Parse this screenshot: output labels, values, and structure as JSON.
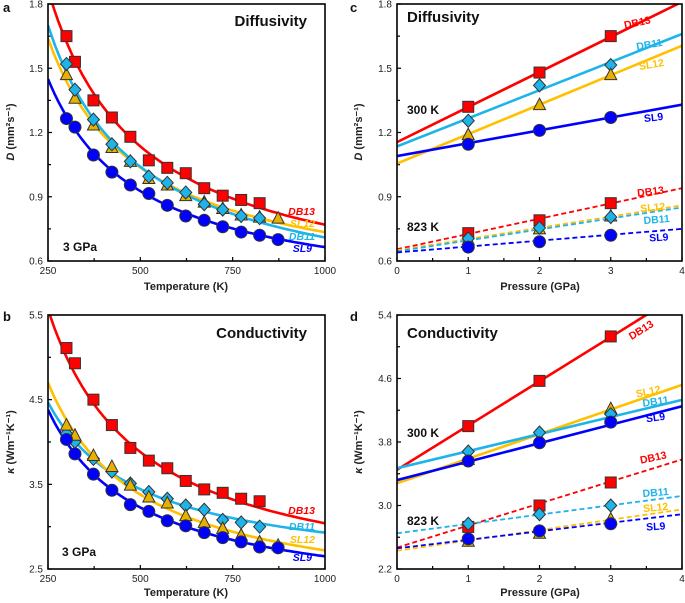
{
  "colors": {
    "DB13": "#ff0000",
    "DB11": "#1eb4ea",
    "SL12": "#ffc000",
    "SL9": "#0000ff",
    "marker_edge": "#333333"
  },
  "chart_data": [
    {
      "panel": "a",
      "type": "scatter",
      "title": "Diffusivity",
      "xlabel": "Temperature (K)",
      "ylabel_symbol": "D",
      "ylabel_unit": " (mm²s⁻¹)",
      "xlim": [
        250,
        1000
      ],
      "ylim": [
        0.6,
        1.8
      ],
      "xticks": [
        250,
        500,
        750,
        1000
      ],
      "yticks": [
        0.6,
        0.9,
        1.2,
        1.5,
        1.8
      ],
      "xtick_labels": [
        "250",
        "500",
        "750",
        "1000"
      ],
      "ytick_labels": [
        "0.6",
        "0.9",
        "1.2",
        "1.5",
        "1.8"
      ],
      "annotations": [
        "3 GPa"
      ],
      "grid": false,
      "series": [
        {
          "name": "DB13",
          "marker": "square",
          "fit": {
            "form": "a+b/T",
            "a": 0.404,
            "b": 365.6
          },
          "x": [
            300,
            323,
            373,
            423,
            473,
            523,
            573,
            623,
            673,
            723,
            773,
            823
          ],
          "y": [
            1.65,
            1.53,
            1.35,
            1.27,
            1.18,
            1.07,
            1.035,
            1.01,
            0.94,
            0.905,
            0.885,
            0.87
          ]
        },
        {
          "name": "SL12",
          "marker": "triangle",
          "fit": {
            "form": "a+b/T",
            "a": 0.433,
            "b": 301.7
          },
          "x": [
            300,
            323,
            373,
            423,
            473,
            523,
            573,
            623,
            673,
            723,
            773,
            823,
            873
          ],
          "y": [
            1.47,
            1.36,
            1.235,
            1.13,
            1.065,
            0.985,
            0.955,
            0.905,
            0.875,
            0.845,
            0.815,
            0.805,
            0.8
          ]
        },
        {
          "name": "DB11",
          "marker": "diamond",
          "fit": {
            "form": "a+b/T",
            "a": 0.38,
            "b": 330
          },
          "x": [
            300,
            323,
            373,
            423,
            473,
            523,
            573,
            623,
            673,
            723,
            773,
            823
          ],
          "y": [
            1.52,
            1.4,
            1.26,
            1.145,
            1.065,
            0.995,
            0.965,
            0.92,
            0.865,
            0.84,
            0.81,
            0.8
          ]
        },
        {
          "name": "SL9",
          "marker": "circle",
          "fit": {
            "form": "a+b/T",
            "a": 0.403,
            "b": 261.7
          },
          "x": [
            300,
            323,
            373,
            423,
            473,
            523,
            573,
            623,
            673,
            723,
            773,
            823,
            873
          ],
          "y": [
            1.265,
            1.225,
            1.095,
            1.015,
            0.955,
            0.915,
            0.86,
            0.81,
            0.79,
            0.76,
            0.735,
            0.72,
            0.7
          ]
        }
      ]
    },
    {
      "panel": "b",
      "type": "scatter",
      "title": "Conductivity",
      "xlabel": "Temperature (K)",
      "ylabel_symbol": "κ",
      "ylabel_unit": " (Wm⁻¹K⁻¹)",
      "xlim": [
        250,
        1000
      ],
      "ylim": [
        2.5,
        5.5
      ],
      "xticks": [
        250,
        500,
        750,
        1000
      ],
      "yticks": [
        2.5,
        3.5,
        4.5,
        5.5
      ],
      "xtick_labels": [
        "250",
        "500",
        "750",
        "1000"
      ],
      "ytick_labels": [
        "2.5",
        "3.5",
        "4.5",
        "5.5"
      ],
      "annotations": [
        "3 GPa"
      ],
      "grid": false,
      "series": [
        {
          "name": "DB13",
          "marker": "square",
          "fit": {
            "form": "a+b/T",
            "a": 2.198,
            "b": 842
          },
          "x": [
            300,
            323,
            373,
            423,
            473,
            523,
            573,
            623,
            673,
            723,
            773,
            823
          ],
          "y": [
            5.11,
            4.93,
            4.5,
            4.2,
            3.93,
            3.78,
            3.69,
            3.54,
            3.44,
            3.4,
            3.33,
            3.3
          ]
        },
        {
          "name": "DB11",
          "marker": "diamond",
          "fit": {
            "form": "a+b/T",
            "a": 2.417,
            "b": 513
          },
          "x": [
            300,
            323,
            373,
            423,
            473,
            523,
            573,
            623,
            673,
            723,
            773,
            823
          ],
          "y": [
            4.1,
            4.0,
            3.8,
            3.65,
            3.51,
            3.41,
            3.33,
            3.25,
            3.2,
            3.08,
            3.05,
            3.0
          ]
        },
        {
          "name": "SL12",
          "marker": "triangle",
          "fit": {
            "form": "a+b/T",
            "a": 2.06,
            "b": 660
          },
          "x": [
            300,
            323,
            373,
            423,
            473,
            523,
            573,
            623,
            673,
            723,
            773,
            823,
            873
          ],
          "y": [
            4.2,
            4.08,
            3.84,
            3.71,
            3.49,
            3.35,
            3.28,
            3.13,
            3.05,
            2.98,
            2.9,
            2.82,
            2.78
          ]
        },
        {
          "name": "SL9",
          "marker": "circle",
          "fit": {
            "form": "a+b/T",
            "a": 2.073,
            "b": 577
          },
          "x": [
            300,
            323,
            373,
            423,
            473,
            523,
            573,
            623,
            673,
            723,
            773,
            823,
            873
          ],
          "y": [
            4.03,
            3.86,
            3.62,
            3.43,
            3.26,
            3.18,
            3.07,
            3.01,
            2.93,
            2.87,
            2.82,
            2.76,
            2.75
          ]
        }
      ]
    },
    {
      "panel": "c",
      "type": "scatter",
      "title": "Diffusivity",
      "xlabel": "Pressure (GPa)",
      "ylabel_symbol": "D",
      "ylabel_unit": " (mm²s⁻¹)",
      "xlim": [
        0,
        4
      ],
      "ylim": [
        0.6,
        1.8
      ],
      "xticks": [
        0,
        1,
        2,
        3,
        4
      ],
      "yticks": [
        0.6,
        0.9,
        1.2,
        1.5,
        1.8
      ],
      "xtick_labels": [
        "0",
        "1",
        "2",
        "3",
        "4"
      ],
      "ytick_labels": [
        "0.6",
        "0.9",
        "1.2",
        "1.5",
        "1.8"
      ],
      "annotations": [
        "300 K",
        "823 K"
      ],
      "grid": false,
      "series": [
        {
          "name": "DB13",
          "condition": "300 K",
          "marker": "square",
          "line": "solid",
          "fit": {
            "form": "linear",
            "y_at_0": 1.155,
            "y_at_4": 1.81
          },
          "x": [
            1,
            2,
            3
          ],
          "y": [
            1.32,
            1.48,
            1.65
          ]
        },
        {
          "name": "DB11",
          "condition": "300 K",
          "marker": "diamond",
          "line": "solid",
          "fit": {
            "form": "linear",
            "y_at_0": 1.135,
            "y_at_4": 1.66
          },
          "x": [
            1,
            2,
            3
          ],
          "y": [
            1.255,
            1.42,
            1.515
          ]
        },
        {
          "name": "SL12",
          "condition": "300 K",
          "marker": "triangle",
          "line": "solid",
          "fit": {
            "form": "linear",
            "y_at_0": 1.055,
            "y_at_4": 1.605
          },
          "x": [
            1,
            2,
            3
          ],
          "y": [
            1.19,
            1.33,
            1.47
          ]
        },
        {
          "name": "SL9",
          "condition": "300 K",
          "marker": "circle",
          "line": "solid",
          "fit": {
            "form": "linear",
            "y_at_0": 1.09,
            "y_at_4": 1.33
          },
          "x": [
            1,
            2,
            3
          ],
          "y": [
            1.145,
            1.21,
            1.27
          ]
        },
        {
          "name": "DB13",
          "condition": "823 K",
          "marker": "square",
          "line": "dashed",
          "fit": {
            "form": "linear",
            "y_at_0": 0.655,
            "y_at_4": 0.94
          },
          "x": [
            1,
            2,
            3
          ],
          "y": [
            0.73,
            0.79,
            0.87
          ]
        },
        {
          "name": "SL12",
          "condition": "823 K",
          "marker": "triangle",
          "line": "dashed",
          "fit": {
            "form": "linear",
            "y_at_0": 0.65,
            "y_at_4": 0.86
          },
          "x": [
            1,
            2,
            3
          ],
          "y": [
            0.7,
            0.75,
            0.81
          ]
        },
        {
          "name": "DB11",
          "condition": "823 K",
          "marker": "diamond",
          "line": "dashed",
          "fit": {
            "form": "linear",
            "y_at_0": 0.645,
            "y_at_4": 0.85
          },
          "x": [
            1,
            2,
            3
          ],
          "y": [
            0.705,
            0.755,
            0.805
          ]
        },
        {
          "name": "SL9",
          "condition": "823 K",
          "marker": "circle",
          "line": "dashed",
          "fit": {
            "form": "linear",
            "y_at_0": 0.64,
            "y_at_4": 0.75
          },
          "x": [
            1,
            2,
            3
          ],
          "y": [
            0.665,
            0.69,
            0.72
          ]
        }
      ]
    },
    {
      "panel": "d",
      "type": "scatter",
      "title": "Conductivity",
      "xlabel": "Pressure (GPa)",
      "ylabel_symbol": "κ",
      "ylabel_unit": " (Wm⁻¹K⁻¹)",
      "xlim": [
        0,
        4
      ],
      "ylim": [
        2.2,
        5.4
      ],
      "xticks": [
        0,
        1,
        2,
        3,
        4
      ],
      "yticks": [
        2.2,
        3.0,
        3.8,
        4.6,
        5.4
      ],
      "xtick_labels": [
        "0",
        "1",
        "2",
        "3",
        "4"
      ],
      "ytick_labels": [
        "2.2",
        "3.0",
        "3.8",
        "4.6",
        "5.4"
      ],
      "annotations": [
        "300 K",
        "823 K"
      ],
      "grid": false,
      "series": [
        {
          "name": "DB13",
          "condition": "300 K",
          "marker": "square",
          "line": "solid",
          "fit": {
            "form": "linear",
            "y_at_0": 3.45,
            "y_at_4": 5.68
          },
          "x": [
            1,
            2,
            3
          ],
          "y": [
            4.0,
            4.57,
            5.13
          ]
        },
        {
          "name": "SL12",
          "condition": "300 K",
          "marker": "triangle",
          "line": "solid",
          "fit": {
            "form": "linear",
            "y_at_0": 3.28,
            "y_at_4": 4.52
          },
          "x": [
            1,
            2,
            3
          ],
          "y": [
            3.58,
            3.85,
            4.22
          ]
        },
        {
          "name": "DB11",
          "condition": "300 K",
          "marker": "diamond",
          "line": "solid",
          "fit": {
            "form": "linear",
            "y_at_0": 3.47,
            "y_at_4": 4.33
          },
          "x": [
            1,
            2,
            3
          ],
          "y": [
            3.68,
            3.92,
            4.15
          ]
        },
        {
          "name": "SL9",
          "condition": "300 K",
          "marker": "circle",
          "line": "solid",
          "fit": {
            "form": "linear",
            "y_at_0": 3.32,
            "y_at_4": 4.25
          },
          "x": [
            1,
            2,
            3
          ],
          "y": [
            3.56,
            3.79,
            4.05
          ]
        },
        {
          "name": "DB13",
          "condition": "823 K",
          "marker": "square",
          "line": "dashed",
          "fit": {
            "form": "linear",
            "y_at_0": 2.47,
            "y_at_4": 3.58
          },
          "x": [
            1,
            2,
            3
          ],
          "y": [
            2.73,
            3.0,
            3.29
          ]
        },
        {
          "name": "DB11",
          "condition": "823 K",
          "marker": "diamond",
          "line": "dashed",
          "fit": {
            "form": "linear",
            "y_at_0": 2.65,
            "y_at_4": 3.12
          },
          "x": [
            1,
            2,
            3
          ],
          "y": [
            2.77,
            2.89,
            3.0
          ]
        },
        {
          "name": "SL12",
          "condition": "823 K",
          "marker": "triangle",
          "line": "dashed",
          "fit": {
            "form": "linear",
            "y_at_0": 2.43,
            "y_at_4": 2.95
          },
          "x": [
            1,
            2,
            3
          ],
          "y": [
            2.55,
            2.65,
            2.83
          ]
        },
        {
          "name": "SL9",
          "condition": "823 K",
          "marker": "circle",
          "line": "dashed",
          "fit": {
            "form": "linear",
            "y_at_0": 2.46,
            "y_at_4": 2.89
          },
          "x": [
            1,
            2,
            3
          ],
          "y": [
            2.58,
            2.68,
            2.77
          ]
        }
      ]
    }
  ]
}
